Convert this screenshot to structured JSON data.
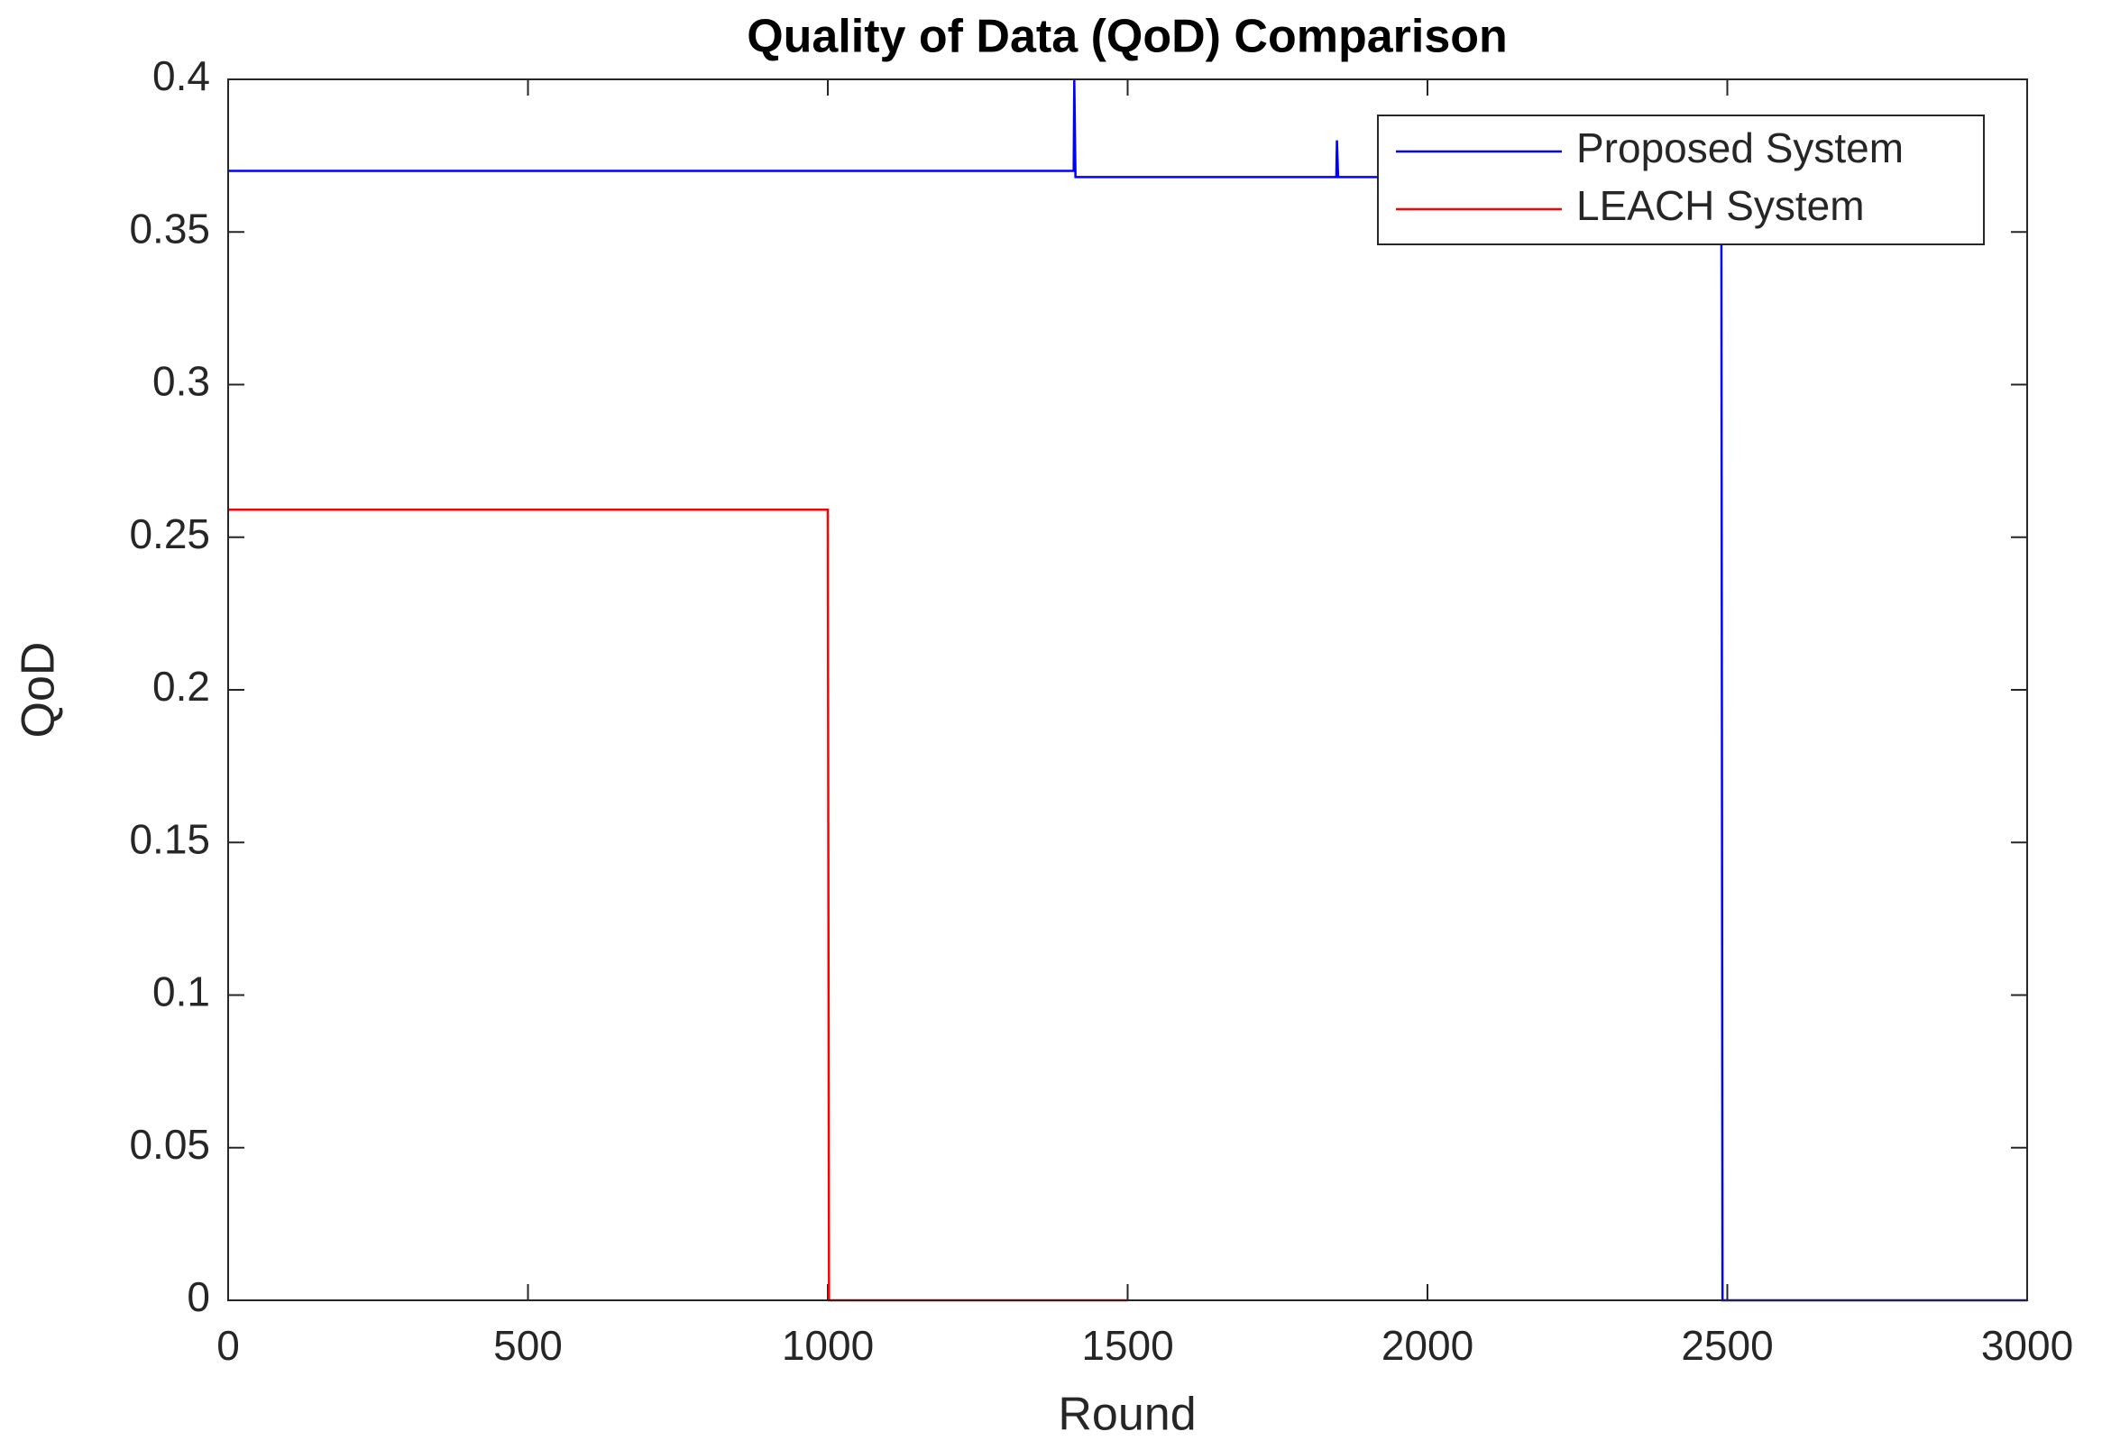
{
  "chart_data": {
    "type": "line",
    "title": "Quality of Data (QoD) Comparison",
    "xlabel": "Round",
    "ylabel": "QoD",
    "series": [
      {
        "name": "Proposed System",
        "color": "#0000ff",
        "x": [
          0,
          1410,
          1411,
          1413,
          1848,
          1849,
          1851,
          2490,
          2492,
          3000
        ],
        "values": [
          0.37,
          0.37,
          0.4,
          0.368,
          0.368,
          0.38,
          0.368,
          0.368,
          0,
          0
        ]
      },
      {
        "name": "LEACH System",
        "color": "#ff0000",
        "x": [
          0,
          1000,
          1002,
          1500
        ],
        "values": [
          0.259,
          0.259,
          0,
          0
        ]
      }
    ],
    "xlim": [
      0,
      3000
    ],
    "xticks": [
      0,
      500,
      1000,
      1500,
      2000,
      2500,
      3000
    ],
    "ylim": [
      0,
      0.4
    ],
    "yticks": [
      0,
      0.05,
      0.1,
      0.15,
      0.2,
      0.25,
      0.3,
      0.35,
      0.4
    ],
    "grid": false,
    "legend": "upper right"
  }
}
